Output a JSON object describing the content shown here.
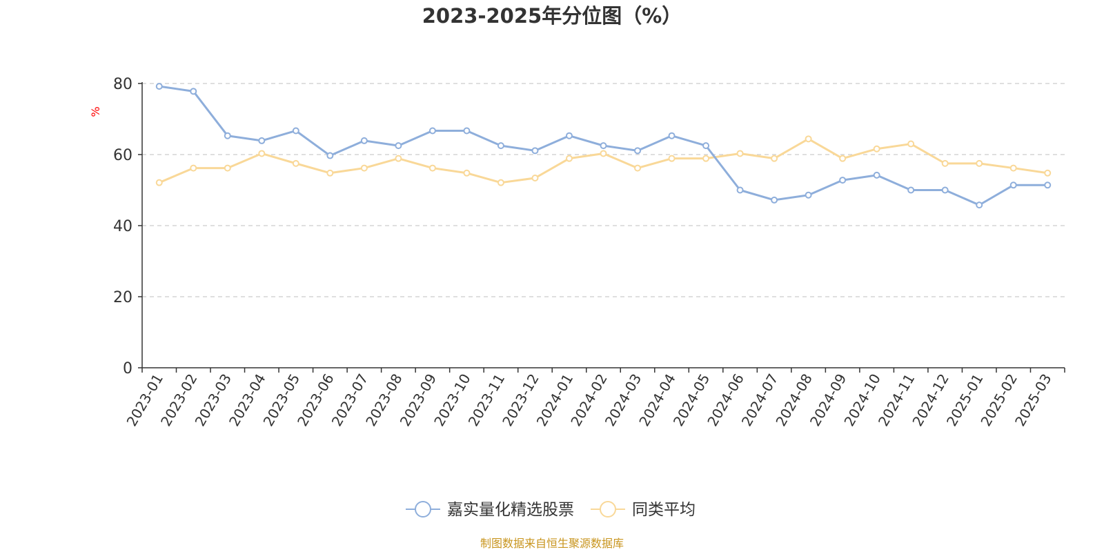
{
  "chart_data": {
    "type": "line",
    "title": "2023-2025年分位图（%）",
    "ylabel": "%",
    "ylim": [
      0,
      80
    ],
    "yticks": [
      0,
      20,
      40,
      60,
      80
    ],
    "grid": true,
    "legend_position": "bottom-center",
    "categories": [
      "2023-01",
      "2023-02",
      "2023-03",
      "2023-04",
      "2023-05",
      "2023-06",
      "2023-07",
      "2023-08",
      "2023-09",
      "2023-10",
      "2023-11",
      "2023-12",
      "2024-01",
      "2024-02",
      "2024-03",
      "2024-04",
      "2024-05",
      "2024-06",
      "2024-07",
      "2024-08",
      "2024-09",
      "2024-10",
      "2024-11",
      "2024-12",
      "2025-01",
      "2025-02",
      "2025-03"
    ],
    "series": [
      {
        "name": "嘉实量化精选股票",
        "color": "#8eaedb",
        "values": [
          79.2,
          77.8,
          65.3,
          63.9,
          66.7,
          59.7,
          63.9,
          62.5,
          66.7,
          66.7,
          62.5,
          61.1,
          65.3,
          62.5,
          61.1,
          65.3,
          62.5,
          50.0,
          47.2,
          48.6,
          52.8,
          54.2,
          50.0,
          50.0,
          45.8,
          51.4,
          51.4
        ]
      },
      {
        "name": "同类平均",
        "color": "#f9d898",
        "values": [
          52.1,
          56.2,
          56.2,
          60.3,
          57.5,
          54.8,
          56.2,
          58.9,
          56.2,
          54.8,
          52.1,
          53.4,
          58.9,
          60.3,
          56.2,
          58.9,
          58.9,
          60.3,
          58.9,
          64.4,
          58.9,
          61.6,
          63.0,
          57.5,
          57.5,
          56.2,
          54.8
        ]
      }
    ]
  },
  "source_text": "制图数据来自恒生聚源数据库"
}
